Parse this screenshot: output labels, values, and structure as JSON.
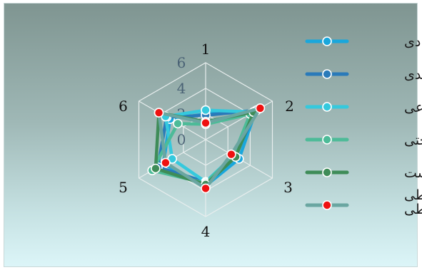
{
  "chart_data": {
    "type": "radar",
    "axes": [
      "1",
      "2",
      "3",
      "4",
      "5",
      "6"
    ],
    "scale": {
      "min": 0,
      "max": 6,
      "ticks": [
        "0",
        "2",
        "4",
        "6"
      ]
    },
    "grid": true,
    "legend_position": "right",
    "series": [
      {
        "name": "اقتصادی",
        "color": "#1aa7dc",
        "marker": "#1aa7dc",
        "values": [
          2.0,
          4.5,
          3.0,
          3.6,
          3.8,
          3.2
        ]
      },
      {
        "name": "کالبدی",
        "color": "#2a7ab9",
        "marker": "#2a7ab9",
        "values": [
          1.9,
          4.6,
          2.6,
          3.3,
          4.3,
          3.5
        ]
      },
      {
        "name": "اجتماعی",
        "color": "#35c9dd",
        "marker": "#35c9dd",
        "values": [
          2.3,
          4.3,
          2.5,
          3.3,
          3.0,
          3.6
        ]
      },
      {
        "name": "زیرساختی",
        "color": "#4dbb98",
        "marker": "#4dbb98",
        "values": [
          1.2,
          4.0,
          2.5,
          3.4,
          4.8,
          2.5
        ]
      },
      {
        "name": "زیست",
        "color": "#3f8c58",
        "marker": "#3f8c58",
        "values": [
          1.4,
          4.3,
          2.7,
          3.5,
          4.5,
          4.2
        ]
      },
      {
        "name": "محیطی\nمحیطی",
        "color": "#6aa6a1",
        "marker": "#ee1111",
        "values": [
          1.3,
          4.9,
          2.3,
          3.8,
          3.6,
          4.2
        ]
      }
    ]
  }
}
